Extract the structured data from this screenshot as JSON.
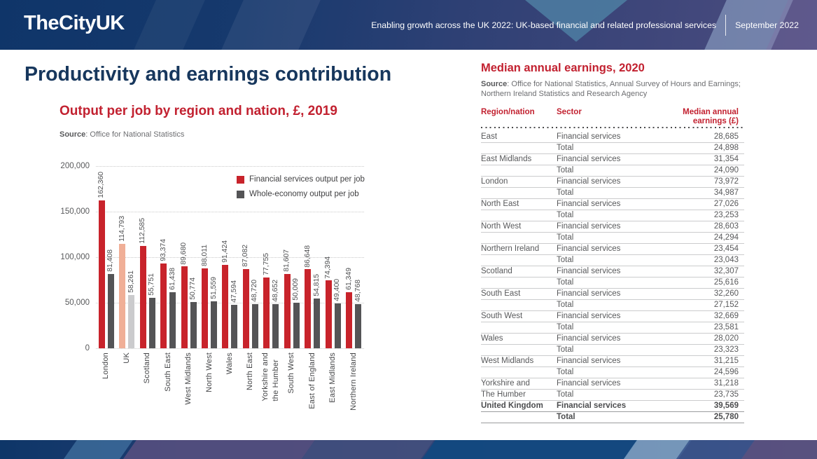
{
  "header": {
    "logo": "TheCityUK",
    "report_title": "Enabling growth across the UK 2022: UK-based financial and related professional services",
    "date": "September 2022"
  },
  "page": {
    "title": "Productivity and earnings contribution"
  },
  "chart": {
    "title": "Output per job by region and nation, £, 2019",
    "source_label": "Source",
    "source_rest": ": Office for National Statistics"
  },
  "chart_data": {
    "type": "bar",
    "title": "Output per job by region and nation, £, 2019",
    "categories": [
      "London",
      "UK",
      "Scotland",
      "South East",
      "West Midlands",
      "North West",
      "Wales",
      "North East",
      "Yorkshire and\nthe Humber",
      "South West",
      "East of England",
      "East Midlands",
      "Northern Ireland"
    ],
    "series": [
      {
        "name": "Financial services output per job",
        "color": "#c8232b",
        "uk_color": "#f0af97",
        "values": [
          162360,
          114793,
          112585,
          93374,
          89680,
          88011,
          91424,
          87082,
          77755,
          81607,
          86648,
          74394,
          61349
        ],
        "labels": [
          "162,360",
          "114,793",
          "112,585",
          "93,374",
          "89,680",
          "88,011",
          "91,424",
          "87,082",
          "77,755",
          "81,607",
          "86,648",
          "74,394",
          "61,349"
        ]
      },
      {
        "name": "Whole-economy output per job",
        "color": "#545456",
        "uk_color": "#cbcbcd",
        "values": [
          81408,
          58261,
          55751,
          61438,
          50774,
          51559,
          47594,
          48720,
          48652,
          50009,
          54815,
          49400,
          48768
        ],
        "labels": [
          "81,408",
          "58,261",
          "55,751",
          "61,438",
          "50,774",
          "51,559",
          "47,594",
          "48,720",
          "48,652",
          "50,009",
          "54,815",
          "49,400",
          "48,768"
        ]
      }
    ],
    "uk_index": 1,
    "ylim": [
      0,
      200000
    ],
    "yticks": [
      "200,000",
      "150,000",
      "100,000",
      "50,000",
      "0"
    ],
    "grid": "horizontal dotted",
    "legend_position": "upper right",
    "xlabel": "",
    "ylabel": ""
  },
  "table": {
    "title": "Median annual earnings, 2020",
    "source_label": "Source",
    "source_rest": ": Office for National Statistics, Annual Survey of Hours and Earnings; Northern Ireland Statistics and Research Agency",
    "columns": {
      "region": "Region/nation",
      "sector": "Sector",
      "value_line1": "Median annual",
      "value_line2": "earnings (£)"
    },
    "rows": [
      {
        "region": "East",
        "sector": "Financial services",
        "value": "28,685",
        "bold": false
      },
      {
        "region": "",
        "sector": "Total",
        "value": "24,898",
        "bold": false
      },
      {
        "region": "East Midlands",
        "sector": "Financial services",
        "value": "31,354",
        "bold": false
      },
      {
        "region": "",
        "sector": "Total",
        "value": "24,090",
        "bold": false
      },
      {
        "region": "London",
        "sector": "Financial services",
        "value": "73,972",
        "bold": false
      },
      {
        "region": "",
        "sector": "Total",
        "value": "34,987",
        "bold": false
      },
      {
        "region": "North East",
        "sector": "Financial services",
        "value": "27,026",
        "bold": false
      },
      {
        "region": "",
        "sector": "Total",
        "value": "23,253",
        "bold": false
      },
      {
        "region": "North West",
        "sector": "Financial services",
        "value": "28,603",
        "bold": false
      },
      {
        "region": "",
        "sector": "Total",
        "value": "24,294",
        "bold": false
      },
      {
        "region": "Northern Ireland",
        "sector": "Financial services",
        "value": "23,454",
        "bold": false
      },
      {
        "region": "",
        "sector": "Total",
        "value": "23,043",
        "bold": false
      },
      {
        "region": "Scotland",
        "sector": "Financial services",
        "value": "32,307",
        "bold": false
      },
      {
        "region": "",
        "sector": "Total",
        "value": "25,616",
        "bold": false
      },
      {
        "region": "South East",
        "sector": "Financial services",
        "value": "32,260",
        "bold": false
      },
      {
        "region": "",
        "sector": "Total",
        "value": "27,152",
        "bold": false
      },
      {
        "region": "South West",
        "sector": "Financial services",
        "value": "32,669",
        "bold": false
      },
      {
        "region": "",
        "sector": "Total",
        "value": "23,581",
        "bold": false
      },
      {
        "region": "Wales",
        "sector": "Financial services",
        "value": "28,020",
        "bold": false
      },
      {
        "region": "",
        "sector": "Total",
        "value": "23,323",
        "bold": false
      },
      {
        "region": "West Midlands",
        "sector": "Financial services",
        "value": "31,215",
        "bold": false
      },
      {
        "region": "",
        "sector": "Total",
        "value": "24,596",
        "bold": false
      },
      {
        "region": "Yorkshire and",
        "sector": "Financial services",
        "value": "31,218",
        "bold": false
      },
      {
        "region": "The Humber",
        "sector": "Total",
        "value": "23,735",
        "bold": false
      },
      {
        "region": "United Kingdom",
        "sector": "Financial services",
        "value": "39,569",
        "bold": true
      },
      {
        "region": "",
        "sector": "Total",
        "value": "25,780",
        "bold": true
      }
    ]
  }
}
